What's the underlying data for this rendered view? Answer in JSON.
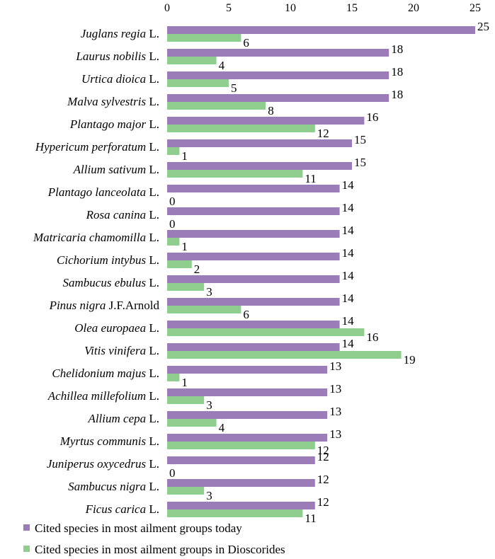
{
  "chart_data": {
    "type": "bar",
    "orientation": "horizontal",
    "xlim": [
      0,
      25
    ],
    "xticks": [
      0,
      5,
      10,
      15,
      20,
      25
    ],
    "gridlines": false,
    "legend_position": "bottom-left",
    "categories": [
      {
        "italic": "Juglans regia",
        "author": "L."
      },
      {
        "italic": "Laurus nobilis",
        "author": "L."
      },
      {
        "italic": "Urtica dioica",
        "author": "L."
      },
      {
        "italic": "Malva sylvestris",
        "author": "L."
      },
      {
        "italic": "Plantago major",
        "author": "L."
      },
      {
        "italic": "Hypericum perforatum",
        "author": "L."
      },
      {
        "italic": "Allium sativum",
        "author": "L."
      },
      {
        "italic": "Plantago lanceolata",
        "author": "L."
      },
      {
        "italic": "Rosa canina",
        "author": "L."
      },
      {
        "italic": "Matricaria chamomilla",
        "author": "L."
      },
      {
        "italic": "Cichorium intybus",
        "author": "L."
      },
      {
        "italic": "Sambucus ebulus",
        "author": "L."
      },
      {
        "italic": "Pinus nigra",
        "author": "J.F.Arnold"
      },
      {
        "italic": "Olea europaea",
        "author": "L."
      },
      {
        "italic": "Vitis vinifera",
        "author": "L."
      },
      {
        "italic": "Chelidonium majus",
        "author": "L."
      },
      {
        "italic": "Achillea millefolium",
        "author": "L."
      },
      {
        "italic": "Allium cepa",
        "author": "L."
      },
      {
        "italic": "Myrtus communis",
        "author": "L."
      },
      {
        "italic": "Juniperus oxycedrus",
        "author": "L."
      },
      {
        "italic": "Sambucus nigra",
        "author": "L."
      },
      {
        "italic": "Ficus carica",
        "author": "L."
      }
    ],
    "series": [
      {
        "name": "Cited species in most ailment groups today",
        "color": "#9b7bb8",
        "values": [
          25,
          18,
          18,
          18,
          16,
          15,
          15,
          14,
          14,
          14,
          14,
          14,
          14,
          14,
          14,
          13,
          13,
          13,
          13,
          12,
          12,
          12
        ]
      },
      {
        "name": "Cited species in most ailment groups in Dioscorides",
        "color": "#8fce8f",
        "values": [
          6,
          4,
          5,
          8,
          12,
          1,
          11,
          0,
          0,
          1,
          2,
          3,
          6,
          16,
          19,
          1,
          3,
          4,
          12,
          0,
          3,
          11
        ]
      }
    ]
  }
}
